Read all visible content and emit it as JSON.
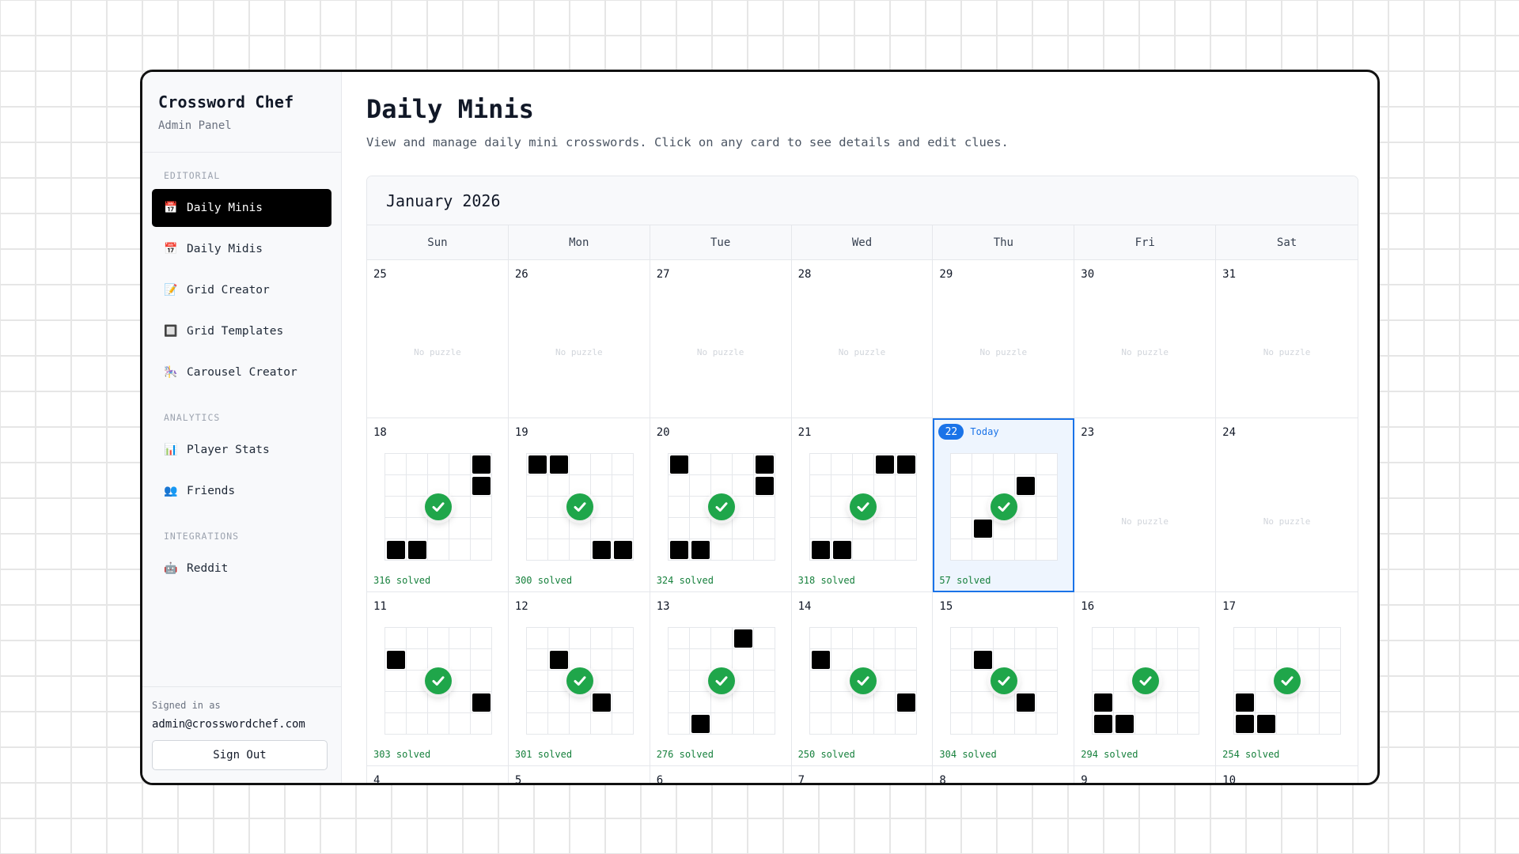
{
  "sidebar": {
    "brand_title": "Crossword Chef",
    "brand_subtitle": "Admin Panel",
    "sections": [
      {
        "label": "EDITORIAL"
      },
      {
        "label": "ANALYTICS"
      },
      {
        "label": "INTEGRATIONS"
      }
    ],
    "items": [
      {
        "label": "Daily Minis",
        "icon": "calendar-icon",
        "glyph": "📅",
        "active": true
      },
      {
        "label": "Daily Midis",
        "icon": "calendar-icon",
        "glyph": "📅"
      },
      {
        "label": "Grid Creator",
        "icon": "memo-icon",
        "glyph": "📝"
      },
      {
        "label": "Grid Templates",
        "icon": "square-icon",
        "glyph": "🔲"
      },
      {
        "label": "Carousel Creator",
        "icon": "carousel-horse-icon",
        "glyph": "🎠"
      },
      {
        "label": "Player Stats",
        "icon": "bar-chart-icon",
        "glyph": "📊"
      },
      {
        "label": "Friends",
        "icon": "people-icon",
        "glyph": "👥"
      },
      {
        "label": "Reddit",
        "icon": "reddit-icon",
        "glyph": "🤖"
      }
    ],
    "signed_in_label": "Signed in as",
    "signed_in_email": "admin@crosswordchef.com",
    "sign_out_label": "Sign Out"
  },
  "main": {
    "title": "Daily Minis",
    "description": "View and manage daily mini crosswords. Click on any card to see details and edit clues."
  },
  "calendar": {
    "month_label": "January 2026",
    "weekdays": [
      "Sun",
      "Mon",
      "Tue",
      "Wed",
      "Thu",
      "Fri",
      "Sat"
    ],
    "today_label": "Today",
    "no_puzzle_text": "No puzzle",
    "weeks": [
      [
        {
          "day": "25",
          "puzzle": false
        },
        {
          "day": "26",
          "puzzle": false
        },
        {
          "day": "27",
          "puzzle": false
        },
        {
          "day": "28",
          "puzzle": false
        },
        {
          "day": "29",
          "puzzle": false
        },
        {
          "day": "30",
          "puzzle": false
        },
        {
          "day": "31",
          "puzzle": false
        }
      ],
      [
        {
          "day": "18",
          "puzzle": true,
          "solved": "316 solved",
          "blocks": [
            4,
            9,
            20,
            21
          ]
        },
        {
          "day": "19",
          "puzzle": true,
          "solved": "300 solved",
          "blocks": [
            0,
            1,
            23,
            24
          ]
        },
        {
          "day": "20",
          "puzzle": true,
          "solved": "324 solved",
          "blocks": [
            0,
            4,
            9,
            20,
            21
          ]
        },
        {
          "day": "21",
          "puzzle": true,
          "solved": "318 solved",
          "blocks": [
            3,
            4,
            20,
            21
          ]
        },
        {
          "day": "22",
          "puzzle": true,
          "today": true,
          "solved": "57 solved",
          "blocks": [
            8,
            16
          ]
        },
        {
          "day": "23",
          "puzzle": false
        },
        {
          "day": "24",
          "puzzle": false
        }
      ],
      [
        {
          "day": "11",
          "puzzle": true,
          "solved": "303 solved",
          "blocks": [
            5,
            19
          ]
        },
        {
          "day": "12",
          "puzzle": true,
          "solved": "301 solved",
          "blocks": [
            6,
            18
          ]
        },
        {
          "day": "13",
          "puzzle": true,
          "solved": "276 solved",
          "blocks": [
            3,
            21
          ]
        },
        {
          "day": "14",
          "puzzle": true,
          "solved": "250 solved",
          "blocks": [
            5,
            19
          ]
        },
        {
          "day": "15",
          "puzzle": true,
          "solved": "304 solved",
          "blocks": [
            6,
            18
          ]
        },
        {
          "day": "16",
          "puzzle": true,
          "solved": "294 solved",
          "blocks": [
            15,
            20,
            21
          ]
        },
        {
          "day": "17",
          "puzzle": true,
          "solved": "254 solved",
          "blocks": [
            15,
            20,
            21
          ]
        }
      ],
      [
        {
          "day": "4",
          "puzzle": false
        },
        {
          "day": "5",
          "puzzle": false
        },
        {
          "day": "6",
          "puzzle": false
        },
        {
          "day": "7",
          "puzzle": false
        },
        {
          "day": "8",
          "puzzle": false
        },
        {
          "day": "9",
          "puzzle": false
        },
        {
          "day": "10",
          "puzzle": false
        }
      ]
    ]
  }
}
